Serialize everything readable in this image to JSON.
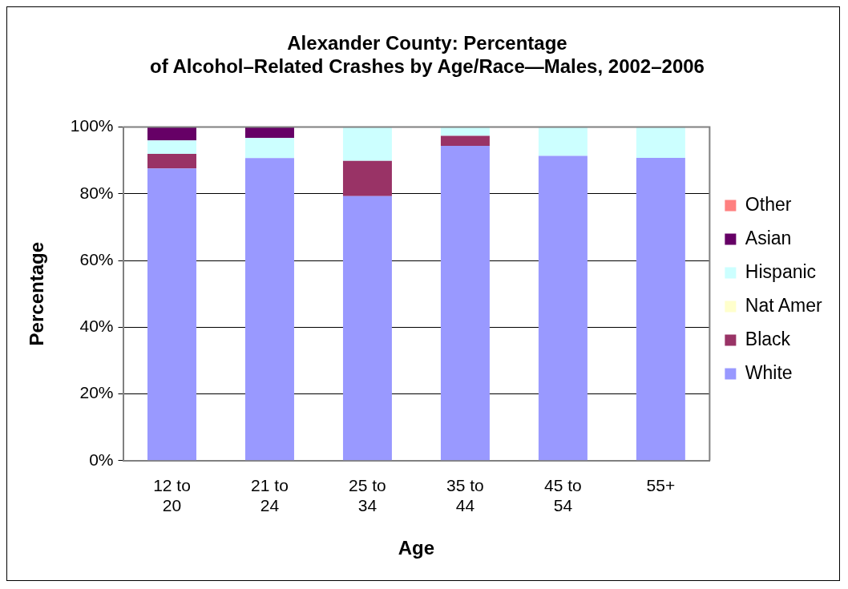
{
  "chart_data": {
    "type": "bar",
    "title": "Alexander County: Percentage of Alcohol–Related Crashes by Age/Race—Males, 2002–2006",
    "xlabel": "Age",
    "ylabel": "Percentage",
    "categories": [
      "12 to 20",
      "21 to 24",
      "25 to 34",
      "35 to 44",
      "45 to 54",
      "55+"
    ],
    "stacked": true,
    "ylim": [
      0,
      100
    ],
    "yticks": [
      {
        "value": 0,
        "label": "0%"
      },
      {
        "value": 20,
        "label": "20%"
      },
      {
        "value": 40,
        "label": "40%"
      },
      {
        "value": 60,
        "label": "60%"
      },
      {
        "value": 80,
        "label": "80%"
      },
      {
        "value": 100,
        "label": "100%"
      }
    ],
    "grid": "y",
    "legend": "right",
    "series": [
      {
        "name": "White",
        "color": "#9999ff",
        "values": [
          87.6,
          90.7,
          79.3,
          94.4,
          91.4,
          90.8
        ]
      },
      {
        "name": "Black",
        "color": "#993366",
        "values": [
          4.4,
          0,
          10.6,
          3,
          0,
          0
        ]
      },
      {
        "name": "Nat Amer",
        "color": "#ffffcc",
        "values": [
          0,
          0,
          0,
          0,
          0,
          0
        ]
      },
      {
        "name": "Hispanic",
        "color": "#ccffff",
        "values": [
          4,
          6,
          10.1,
          2.6,
          8.6,
          9.2
        ]
      },
      {
        "name": "Asian",
        "color": "#660066",
        "values": [
          4,
          3.3,
          0,
          0,
          0,
          0
        ]
      },
      {
        "name": "Other",
        "color": "#ff8080",
        "values": [
          0,
          0,
          0,
          0,
          0,
          0
        ]
      }
    ]
  }
}
